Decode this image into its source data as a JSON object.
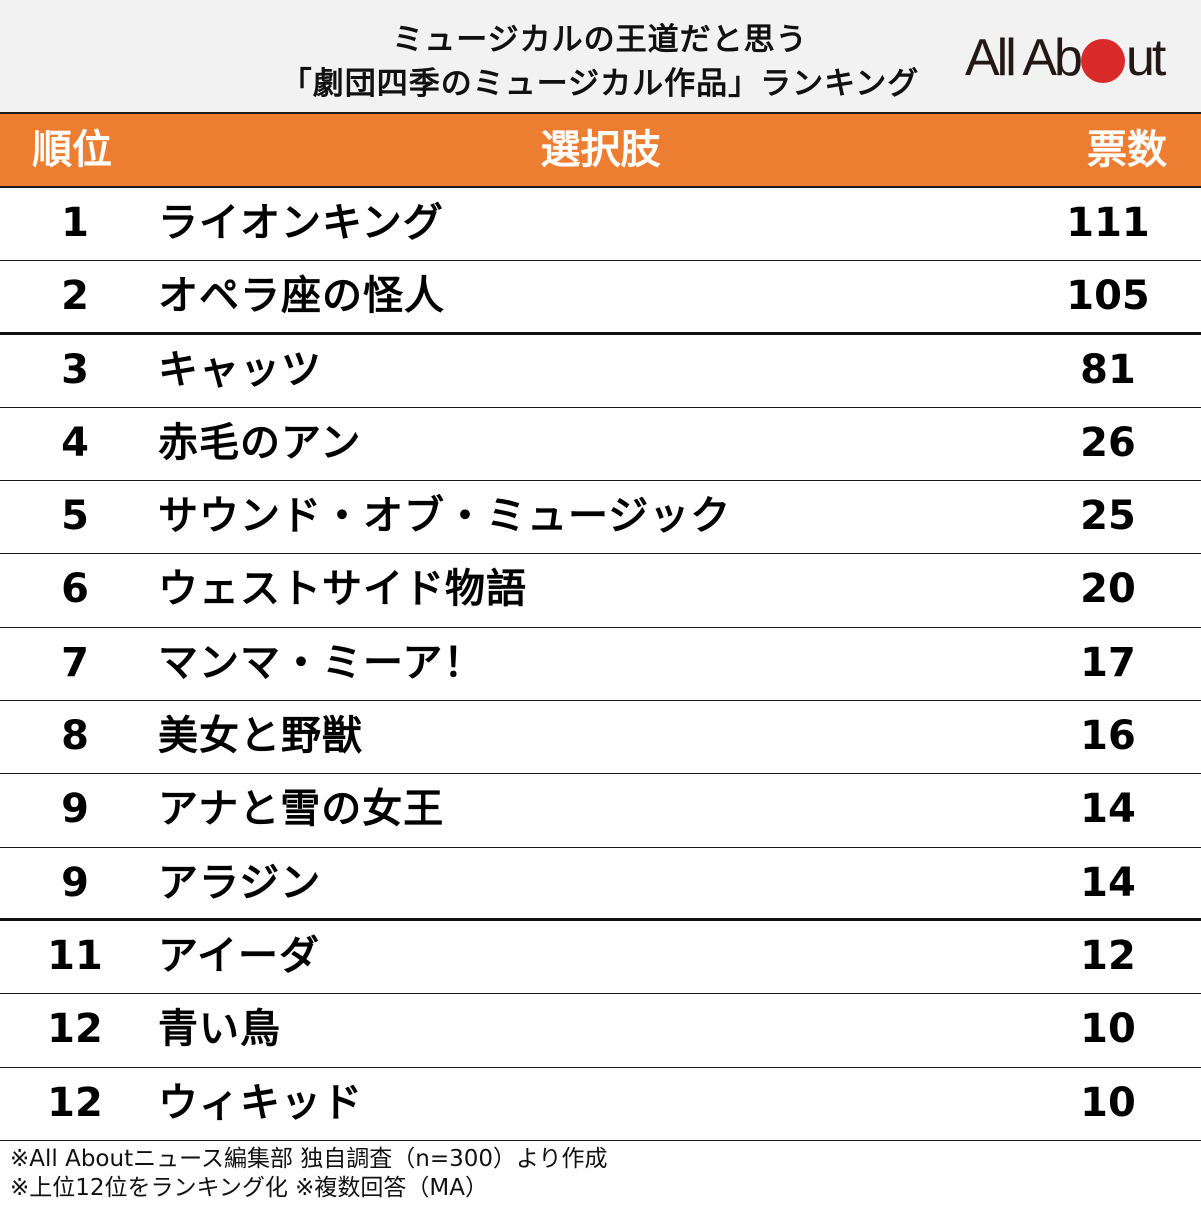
{
  "title": {
    "line1": "ミュージカルの王道だと思う",
    "line2": "「劇団四季のミュージカル作品」ランキング"
  },
  "logo": {
    "text_left": "All Ab",
    "text_right": "ut",
    "dot_color": "#d92a2a"
  },
  "header": {
    "rank": "順位",
    "choice": "選択肢",
    "votes": "票数",
    "bg_color": "#ed7d31"
  },
  "rows": [
    {
      "rank": "1",
      "name": "ライオンキング",
      "votes": "111"
    },
    {
      "rank": "2",
      "name": "オペラ座の怪人",
      "votes": "105"
    },
    {
      "rank": "3",
      "name": "キャッツ",
      "votes": "81"
    },
    {
      "rank": "4",
      "name": "赤毛のアン",
      "votes": "26"
    },
    {
      "rank": "5",
      "name": "サウンド・オブ・ミュージック",
      "votes": "25"
    },
    {
      "rank": "6",
      "name": "ウェストサイド物語",
      "votes": "20"
    },
    {
      "rank": "7",
      "name": "マンマ・ミーア！",
      "votes": "17"
    },
    {
      "rank": "8",
      "name": "美女と野獣",
      "votes": "16"
    },
    {
      "rank": "9",
      "name": "アナと雪の女王",
      "votes": "14"
    },
    {
      "rank": "9",
      "name": "アラジン",
      "votes": "14"
    },
    {
      "rank": "11",
      "name": "アイーダ",
      "votes": "12"
    },
    {
      "rank": "12",
      "name": "青い鳥",
      "votes": "10"
    },
    {
      "rank": "12",
      "name": "ウィキッド",
      "votes": "10"
    }
  ],
  "footnotes": {
    "line1": "※All Aboutニュース編集部 独自調査（n=300）より作成",
    "line2": "※上位12位をランキング化 ※複数回答（MA）"
  },
  "chart_data": {
    "type": "table",
    "title": "ミュージカルの王道だと思う「劇団四季のミュージカル作品」ランキング",
    "columns": [
      "順位",
      "選択肢",
      "票数"
    ],
    "categories": [
      "ライオンキング",
      "オペラ座の怪人",
      "キャッツ",
      "赤毛のアン",
      "サウンド・オブ・ミュージック",
      "ウェストサイド物語",
      "マンマ・ミーア！",
      "美女と野獣",
      "アナと雪の女王",
      "アラジン",
      "アイーダ",
      "青い鳥",
      "ウィキッド"
    ],
    "ranks": [
      1,
      2,
      3,
      4,
      5,
      6,
      7,
      8,
      9,
      9,
      11,
      12,
      12
    ],
    "values": [
      111,
      105,
      81,
      26,
      25,
      20,
      17,
      16,
      14,
      14,
      12,
      10,
      10
    ],
    "notes": [
      "※All Aboutニュース編集部 独自調査（n=300）より作成",
      "※上位12位をランキング化 ※複数回答（MA）"
    ],
    "sample_size": 300
  }
}
